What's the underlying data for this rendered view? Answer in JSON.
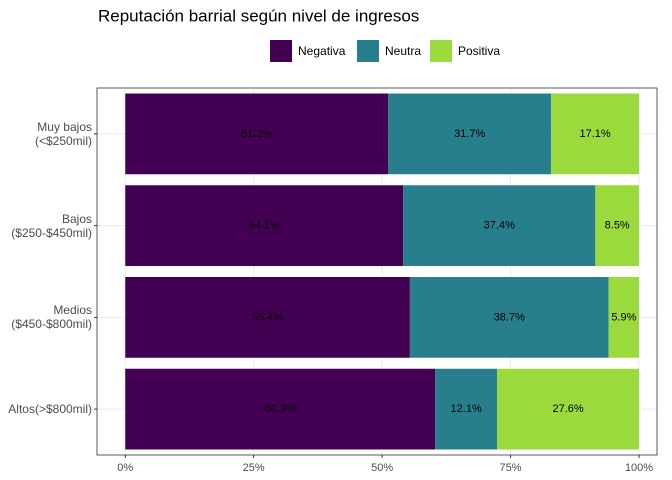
{
  "chart_data": {
    "type": "stacked-barh",
    "title": "Reputación barrial según nivel de ingresos",
    "categories": [
      "Muy bajos\n(<$250mil)",
      "Bajos\n($250-$450mil)",
      "Medios\n($450-$800mil)",
      "Altos(>$800mil)"
    ],
    "series": [
      {
        "name": "Negativa",
        "color": "#440154",
        "values": [
          51.2,
          54.1,
          55.4,
          60.3
        ],
        "value_labels": [
          "51.2%",
          "54.1%",
          "55.4%",
          "60.3%"
        ]
      },
      {
        "name": "Neutra",
        "color": "#277f8e",
        "values": [
          31.7,
          37.4,
          38.7,
          12.1
        ],
        "value_labels": [
          "31.7%",
          "37.4%",
          "38.7%",
          "12.1%"
        ]
      },
      {
        "name": "Positiva",
        "color": "#9bda3d",
        "values": [
          17.1,
          8.5,
          5.9,
          27.6
        ],
        "value_labels": [
          "17.1%",
          "8.5%",
          "5.9%",
          "27.6%"
        ]
      }
    ],
    "xlim": [
      -5.5,
      103.5
    ],
    "xticks": [
      {
        "value": 0,
        "label": "0%"
      },
      {
        "value": 25,
        "label": "25%"
      },
      {
        "value": 50,
        "label": "50%"
      },
      {
        "value": 75,
        "label": "75%"
      },
      {
        "value": 100,
        "label": "100%"
      }
    ],
    "grid": true
  }
}
